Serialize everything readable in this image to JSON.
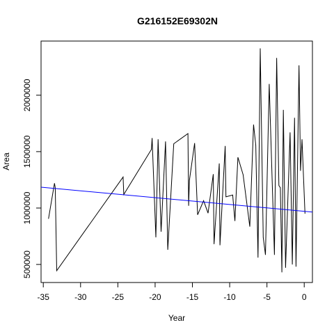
{
  "chart_data": {
    "type": "line",
    "title": "G216152E69302N",
    "xlabel": "Year",
    "ylabel": "Area",
    "xlim": [
      -35.3,
      1.1
    ],
    "ylim": [
      340000,
      2480000
    ],
    "x_ticks": [
      -35,
      -30,
      -25,
      -20,
      -15,
      -10,
      -5,
      0
    ],
    "y_ticks": [
      500000,
      1000000,
      1500000,
      2000000
    ],
    "x_tick_labels": [
      "-35",
      "-30",
      "-25",
      "-20",
      "-15",
      "-10",
      "-5",
      "0"
    ],
    "y_tick_labels": [
      "500000",
      "1000000",
      "1500000",
      "2000000"
    ],
    "grid": false,
    "series": [
      {
        "color": "#000000",
        "x": [
          -34.3,
          -33.5,
          -33.4,
          -33.2,
          -24.3,
          -24.2,
          -20.5,
          -20.4,
          -19.9,
          -19.6,
          -19.2,
          -18.6,
          -18.3,
          -17.5,
          -15.6,
          -15.5,
          -15.4,
          -14.7,
          -14.3,
          -13.5,
          -12.9,
          -12.2,
          -12.1,
          -11.4,
          -11.3,
          -10.6,
          -10.5,
          -9.6,
          -9.3,
          -8.9,
          -8.2,
          -7.3,
          -6.8,
          -6.5,
          -6.2,
          -5.9,
          -5.5,
          -5.2,
          -4.7,
          -4.0,
          -3.7,
          -3.4,
          -3.2,
          -3.0,
          -2.8,
          -2.5,
          -1.9,
          -1.6,
          -1.3,
          -1.1,
          -0.7,
          -0.5,
          -0.3,
          0.1
        ],
        "y": [
          905000,
          1220000,
          1180000,
          445000,
          1275000,
          1120000,
          1520000,
          1620000,
          740000,
          1610000,
          790000,
          1590000,
          630000,
          1570000,
          1660000,
          1020000,
          1245000,
          1575000,
          940000,
          1065000,
          955000,
          1300000,
          680000,
          1395000,
          670000,
          1550000,
          1100000,
          1115000,
          885000,
          1450000,
          1295000,
          835000,
          1740000,
          1555000,
          560000,
          2415000,
          740000,
          585000,
          2100000,
          585000,
          2330000,
          1200000,
          1180000,
          430000,
          1870000,
          470000,
          1670000,
          500000,
          1800000,
          480000,
          2265000,
          1330000,
          1610000,
          950000
        ]
      },
      {
        "color": "#0000ff",
        "x": [
          -35.3,
          1.1
        ],
        "y": [
          1185000,
          965000
        ]
      }
    ]
  }
}
